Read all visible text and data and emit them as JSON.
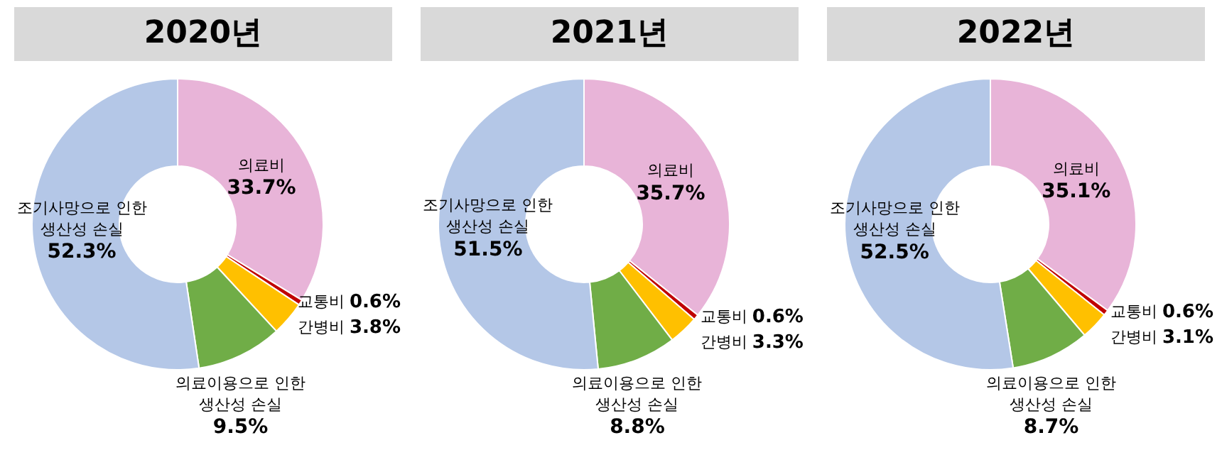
{
  "chart_data": [
    {
      "type": "donut",
      "title": "2020년",
      "categories": [
        "의료비",
        "교통비",
        "간병비",
        "의료이용으로 인한\n생산성 손실",
        "조기사망으로 인한\n생산성 손실"
      ],
      "values": [
        33.7,
        0.6,
        3.8,
        9.5,
        52.3
      ],
      "colors": [
        "#e8b4d8",
        "#c00000",
        "#ffc000",
        "#70ad47",
        "#b4c7e7"
      ],
      "value_labels": [
        "33.7%",
        "0.6%",
        "3.8%",
        "9.5%",
        "52.3%"
      ]
    },
    {
      "type": "donut",
      "title": "2021년",
      "categories": [
        "의료비",
        "교통비",
        "간병비",
        "의료이용으로 인한\n생산성 손실",
        "조기사망으로 인한\n생산성 손실"
      ],
      "values": [
        35.7,
        0.6,
        3.3,
        8.8,
        51.5
      ],
      "colors": [
        "#e8b4d8",
        "#c00000",
        "#ffc000",
        "#70ad47",
        "#b4c7e7"
      ],
      "value_labels": [
        "35.7%",
        "0.6%",
        "3.3%",
        "8.8%",
        "51.5%"
      ]
    },
    {
      "type": "donut",
      "title": "2022년",
      "categories": [
        "의료비",
        "교통비",
        "간병비",
        "의료이용으로 인한\n생산성 손실",
        "조기사망으로 인한\n생산성 손실"
      ],
      "values": [
        35.1,
        0.6,
        3.1,
        8.7,
        52.5
      ],
      "colors": [
        "#e8b4d8",
        "#c00000",
        "#ffc000",
        "#70ad47",
        "#b4c7e7"
      ],
      "value_labels": [
        "35.1%",
        "0.6%",
        "3.1%",
        "8.7%",
        "52.5%"
      ]
    }
  ]
}
